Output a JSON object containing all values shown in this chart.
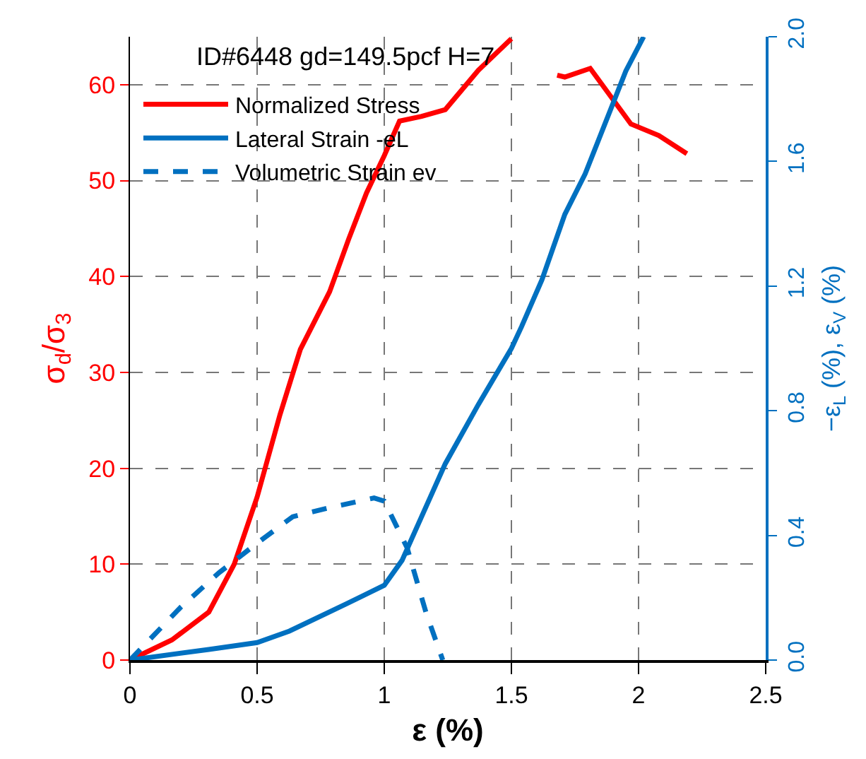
{
  "chart_data": {
    "type": "line",
    "title": "ID#6448 gd=149.5pcf H=7",
    "xlabel": "ε (%)",
    "ylabel": "σ$_{d}$/σ$_{3}$",
    "y2label": "−ε$_{L}$ (%), ε$_{V}$ (%)",
    "xlim": [
      0,
      2.5
    ],
    "xticks": [
      0,
      0.5,
      1,
      1.5,
      2,
      2.5
    ],
    "ylim": [
      0,
      65
    ],
    "yticks": [
      0,
      10,
      20,
      30,
      40,
      50,
      60
    ],
    "y2lim": [
      0,
      2.0
    ],
    "y2ticks": [
      {
        "value": 0,
        "label": "0.0"
      },
      {
        "value": 0.4,
        "label": "0.4"
      },
      {
        "value": 0.8,
        "label": "0.8"
      },
      {
        "value": 1.2,
        "label": "1.2"
      },
      {
        "value": 1.6,
        "label": "1.6"
      },
      {
        "value": 2.0,
        "label": "2.0"
      }
    ],
    "grid": true,
    "legend": "top left",
    "marker": "none",
    "series": [
      {
        "name": "Normalized Stress",
        "color": "#ff0000",
        "line_style": "solid",
        "x": [
          0,
          0.165,
          0.31,
          0.41,
          0.5,
          0.59,
          0.67,
          0.785,
          0.86,
          0.93,
          1.0,
          1.06,
          1.147,
          1.24,
          1.37,
          1.5,
          1.6,
          1.68,
          1.71,
          1.81,
          1.97,
          2.08,
          2.19
        ],
        "values": [
          0,
          2.1,
          5.0,
          10,
          17,
          25.6,
          32.4,
          38.4,
          43.9,
          48.7,
          52.6,
          56.2,
          56.7,
          57.4,
          61.5,
          64.8,
          null,
          61.0,
          60.8,
          61.7,
          55.9,
          54.7,
          52.8
        ]
      },
      {
        "name": "Lateral Strain -eL",
        "color": "#0070c0",
        "axis": "y2",
        "line_style": "solid",
        "x": [
          0,
          0.31,
          0.5,
          0.627,
          0.85,
          1.0,
          1.07,
          1.24,
          1.37,
          1.5,
          1.54,
          1.62,
          1.71,
          1.79,
          1.95,
          2.02
        ],
        "values": [
          0,
          0.034,
          0.056,
          0.093,
          0.18,
          0.24,
          0.32,
          0.63,
          0.82,
          1.0,
          1.07,
          1.22,
          1.43,
          1.56,
          1.89,
          2.0
        ]
      },
      {
        "name": "Volumetric Strain ev",
        "color": "#0070c0",
        "axis": "y2",
        "line_style": "dashed",
        "x": [
          0,
          0.2,
          0.35,
          0.5,
          0.64,
          0.79,
          0.96,
          1.0,
          1.09,
          1.165,
          1.23
        ],
        "values": [
          0,
          0.17,
          0.28,
          0.375,
          0.46,
          0.49,
          0.52,
          0.51,
          0.36,
          0.15,
          0
        ]
      }
    ]
  }
}
